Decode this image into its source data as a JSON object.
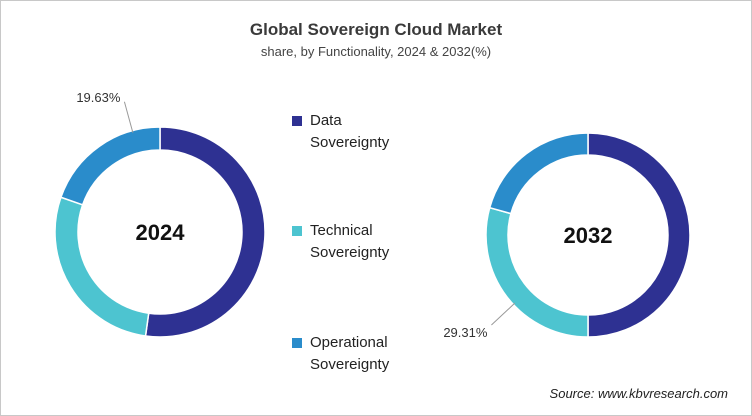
{
  "chart_data": {
    "type": "donut",
    "title": "Global Sovereign Cloud Market",
    "subtitle": "share, by Functionality, 2024 & 2032(%)",
    "source": "Source: www.kbvresearch.com",
    "categories": [
      "Data Sovereignty",
      "Technical Sovereignty",
      "Operational Sovereignty"
    ],
    "colors": [
      "#2e3192",
      "#4dc4d0",
      "#2a8ccb"
    ],
    "series": [
      {
        "name": "2024",
        "values": [
          52.2,
          28.17,
          19.63
        ],
        "value_labels": [
          null,
          null,
          "19.63%"
        ]
      },
      {
        "name": "2032",
        "values": [
          50,
          29.31,
          20.69
        ],
        "value_labels": [
          null,
          "29.31%",
          null
        ]
      }
    ]
  }
}
